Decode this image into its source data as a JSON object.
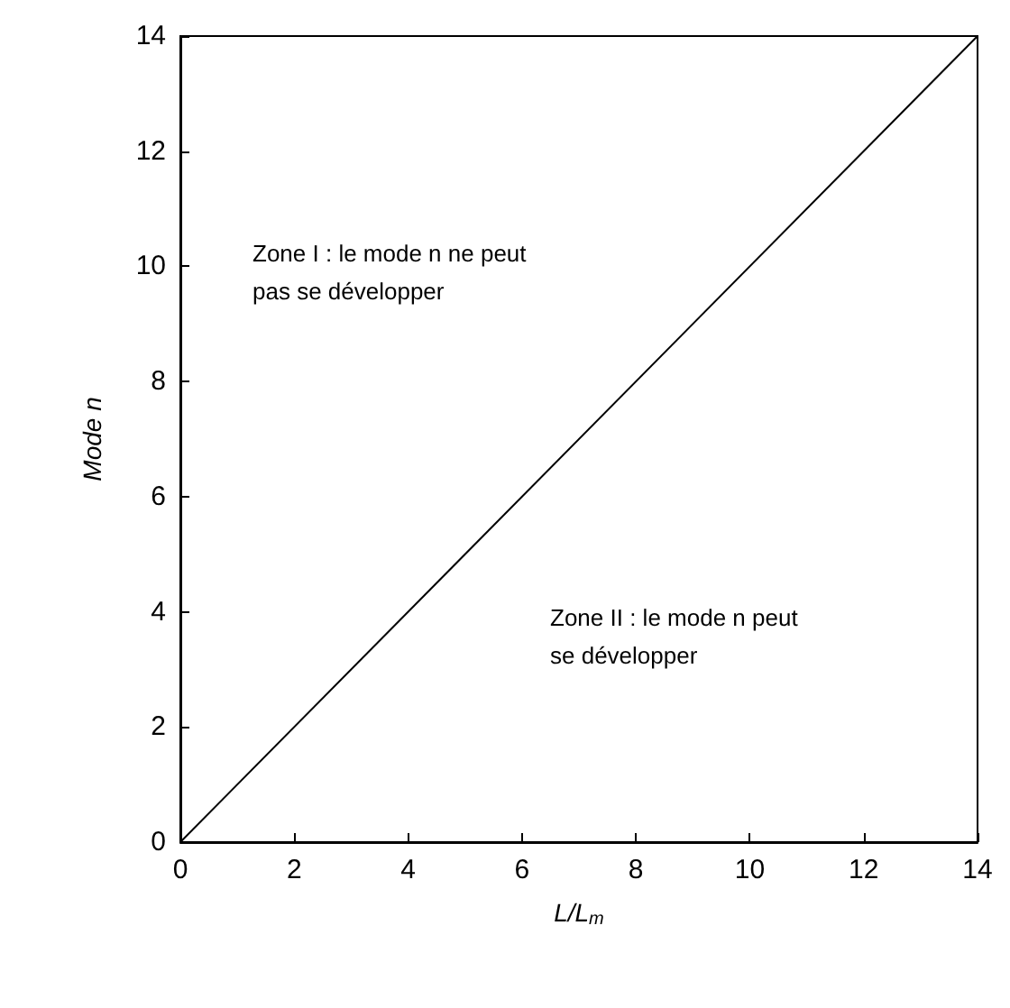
{
  "chart_data": {
    "type": "line",
    "xlabel": "L/L$_{m}$",
    "ylabel": "Mode n",
    "x": [
      0,
      14
    ],
    "series": [
      {
        "color": "#000000",
        "values": [
          0,
          14
        ]
      }
    ],
    "xlim": [
      0,
      14
    ],
    "xticks": [
      0,
      2,
      4,
      6,
      8,
      10,
      12,
      14
    ],
    "ylim": [
      0,
      14
    ],
    "yticks": [
      0,
      2,
      4,
      6,
      8,
      10,
      12,
      14
    ],
    "grid": false,
    "marker": "none",
    "line_style": "solid",
    "annotations": [
      "Zone I : le mode n ne peut pas se développer",
      "Zone II : le mode n peut se développer"
    ]
  }
}
